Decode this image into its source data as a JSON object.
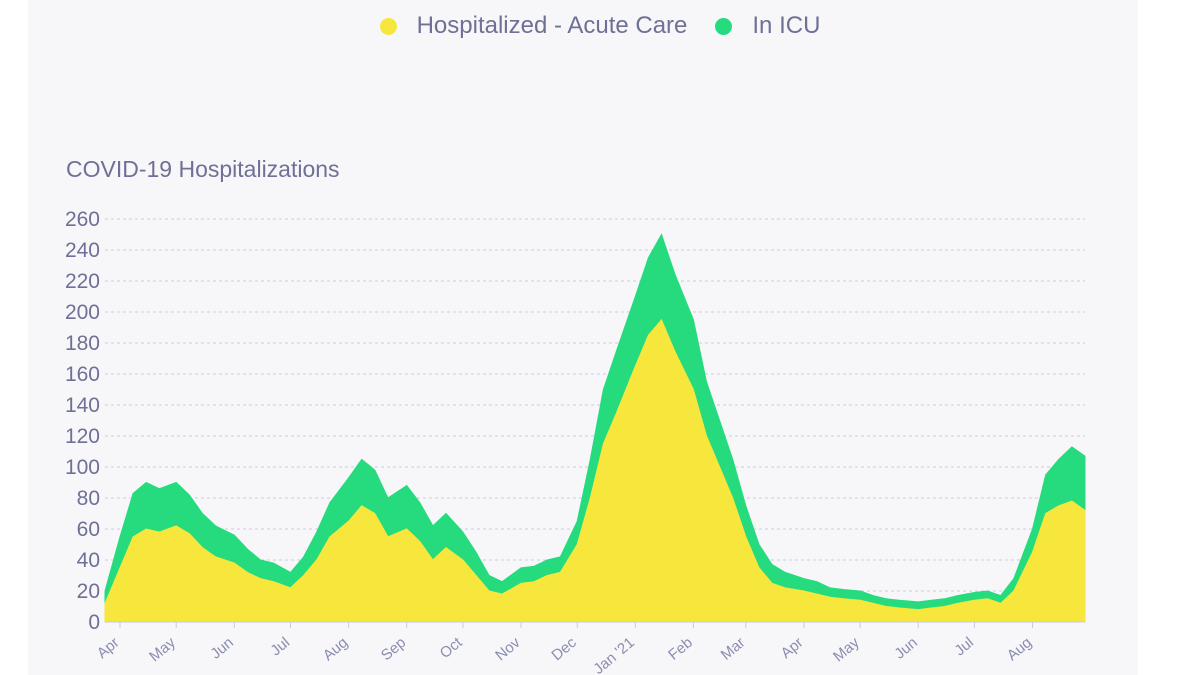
{
  "chart_data": {
    "type": "area",
    "stacked": true,
    "title": "COVID-19 Hospitalizations",
    "xlabel": "",
    "ylabel": "",
    "ylim": [
      0,
      260
    ],
    "yticks": [
      0,
      20,
      40,
      60,
      80,
      100,
      120,
      140,
      160,
      180,
      200,
      220,
      240,
      260
    ],
    "grid": true,
    "legend_position": "top-center",
    "x_ticks": [
      {
        "label": "Apr",
        "date": "2020-04-01"
      },
      {
        "label": "May",
        "date": "2020-05-01"
      },
      {
        "label": "Jun",
        "date": "2020-06-01"
      },
      {
        "label": "Jul",
        "date": "2020-07-01"
      },
      {
        "label": "Aug",
        "date": "2020-08-01"
      },
      {
        "label": "Sep",
        "date": "2020-09-01"
      },
      {
        "label": "Oct",
        "date": "2020-10-01"
      },
      {
        "label": "Nov",
        "date": "2020-11-01"
      },
      {
        "label": "Dec",
        "date": "2020-12-01"
      },
      {
        "label": "Jan '21",
        "date": "2021-01-01"
      },
      {
        "label": "Feb",
        "date": "2021-02-01"
      },
      {
        "label": "Mar",
        "date": "2021-03-01"
      },
      {
        "label": "Apr",
        "date": "2021-04-01"
      },
      {
        "label": "May",
        "date": "2021-05-01"
      },
      {
        "label": "Jun",
        "date": "2021-06-01"
      },
      {
        "label": "Jul",
        "date": "2021-07-01"
      },
      {
        "label": "Aug",
        "date": "2021-08-01"
      }
    ],
    "x": [
      "2020-03-24",
      "2020-04-01",
      "2020-04-08",
      "2020-04-15",
      "2020-04-22",
      "2020-05-01",
      "2020-05-08",
      "2020-05-15",
      "2020-05-22",
      "2020-06-01",
      "2020-06-08",
      "2020-06-15",
      "2020-06-22",
      "2020-07-01",
      "2020-07-08",
      "2020-07-15",
      "2020-07-22",
      "2020-08-01",
      "2020-08-08",
      "2020-08-15",
      "2020-08-22",
      "2020-09-01",
      "2020-09-08",
      "2020-09-15",
      "2020-09-22",
      "2020-10-01",
      "2020-10-08",
      "2020-10-15",
      "2020-10-22",
      "2020-11-01",
      "2020-11-08",
      "2020-11-15",
      "2020-11-22",
      "2020-12-01",
      "2020-12-08",
      "2020-12-15",
      "2020-12-22",
      "2021-01-01",
      "2021-01-08",
      "2021-01-15",
      "2021-01-22",
      "2021-02-01",
      "2021-02-08",
      "2021-02-15",
      "2021-02-22",
      "2021-03-01",
      "2021-03-08",
      "2021-03-15",
      "2021-03-22",
      "2021-04-01",
      "2021-04-08",
      "2021-04-15",
      "2021-04-22",
      "2021-05-01",
      "2021-05-08",
      "2021-05-15",
      "2021-05-22",
      "2021-06-01",
      "2021-06-08",
      "2021-06-15",
      "2021-06-22",
      "2021-07-01",
      "2021-07-08",
      "2021-07-15",
      "2021-07-22",
      "2021-08-01",
      "2021-08-08",
      "2021-08-15",
      "2021-08-22",
      "2021-08-29"
    ],
    "series": [
      {
        "name": "Hospitalized - Acute Care",
        "color": "#f7e63c",
        "values": [
          12,
          35,
          55,
          60,
          58,
          62,
          57,
          48,
          42,
          38,
          32,
          28,
          26,
          22,
          30,
          40,
          55,
          65,
          75,
          70,
          55,
          60,
          52,
          40,
          48,
          40,
          30,
          20,
          18,
          25,
          26,
          30,
          32,
          50,
          80,
          115,
          135,
          165,
          185,
          195,
          175,
          150,
          120,
          100,
          80,
          55,
          35,
          25,
          22,
          20,
          18,
          16,
          15,
          14,
          12,
          10,
          9,
          8,
          9,
          10,
          12,
          14,
          15,
          12,
          20,
          45,
          70,
          75,
          78,
          72
        ]
      },
      {
        "name": "In ICU",
        "color": "#26db7e",
        "values": [
          8,
          20,
          28,
          30,
          28,
          28,
          25,
          22,
          20,
          18,
          15,
          12,
          12,
          10,
          12,
          18,
          22,
          28,
          30,
          28,
          25,
          28,
          25,
          22,
          22,
          18,
          15,
          10,
          8,
          10,
          10,
          10,
          10,
          15,
          25,
          35,
          40,
          45,
          50,
          55,
          50,
          45,
          35,
          30,
          25,
          20,
          15,
          12,
          10,
          8,
          8,
          6,
          6,
          6,
          5,
          5,
          5,
          5,
          5,
          5,
          5,
          5,
          5,
          5,
          8,
          15,
          25,
          30,
          35,
          35
        ]
      }
    ]
  }
}
